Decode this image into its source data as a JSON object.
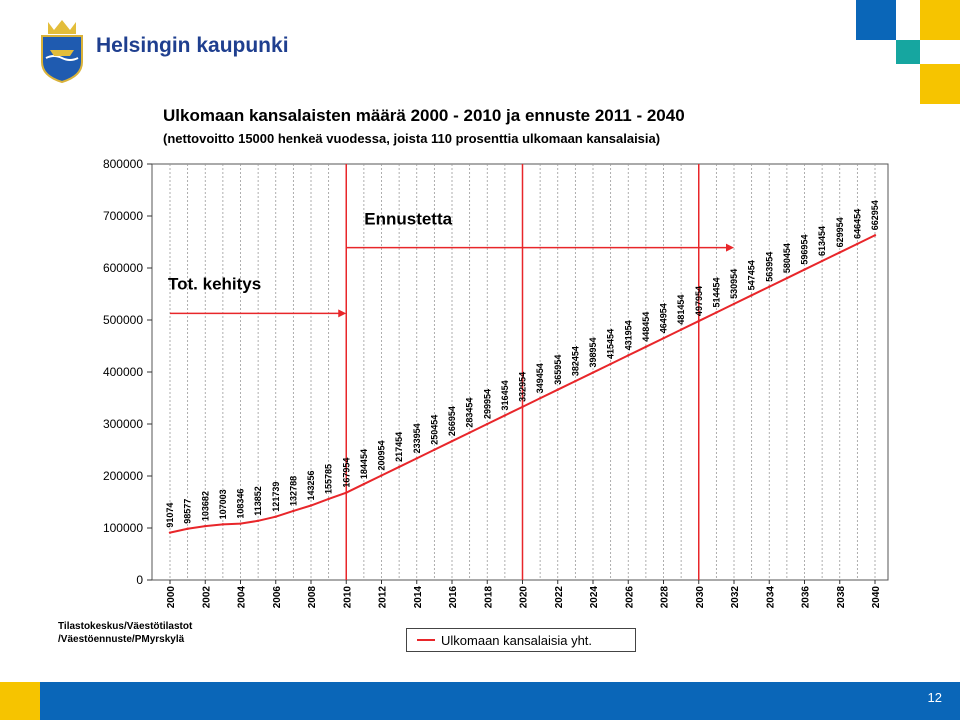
{
  "header": {
    "org_name": "Helsingin kaupunki"
  },
  "chart_data": {
    "type": "line",
    "title": "Ulkomaan kansalaisten määrä 2000 - 2010 ja ennuste 2011 - 2040",
    "subtitle": "(nettovoitto 15000 henkeä vuodessa, joista 110 prosenttia ulkomaan kansalaisia)",
    "xlabel": "",
    "ylabel": "",
    "ylim": [
      0,
      800000
    ],
    "xlim": [
      2000,
      2040
    ],
    "y_ticks": [
      "0",
      "100000",
      "200000",
      "300000",
      "400000",
      "500000",
      "600000",
      "700000",
      "800000"
    ],
    "x_ticks": [
      "2000",
      "2002",
      "2004",
      "2006",
      "2008",
      "2010",
      "2012",
      "2014",
      "2016",
      "2018",
      "2020",
      "2022",
      "2024",
      "2026",
      "2028",
      "2030",
      "2032",
      "2034",
      "2036",
      "2038",
      "2040"
    ],
    "grid": "vertical dashed",
    "series": [
      {
        "name": "Ulkomaan kansalaisia yht.",
        "color": "#e8262a",
        "x": [
          2000,
          2001,
          2002,
          2003,
          2004,
          2005,
          2006,
          2007,
          2008,
          2009,
          2010,
          2011,
          2012,
          2013,
          2014,
          2015,
          2016,
          2017,
          2018,
          2019,
          2020,
          2021,
          2022,
          2023,
          2024,
          2025,
          2026,
          2027,
          2028,
          2029,
          2030,
          2031,
          2032,
          2033,
          2034,
          2035,
          2036,
          2037,
          2038,
          2039,
          2040
        ],
        "values": [
          91074,
          98577,
          103682,
          107003,
          108346,
          113852,
          121739,
          132788,
          143256,
          155785,
          167954,
          184454,
          200954,
          217454,
          233954,
          250454,
          266954,
          283454,
          299954,
          316454,
          332954,
          349454,
          365954,
          382454,
          398954,
          415454,
          431954,
          448454,
          464954,
          481454,
          497954,
          514454,
          530954,
          547454,
          563954,
          580454,
          596954,
          613454,
          629954,
          646454,
          662954
        ]
      }
    ],
    "data_labels": [
      "91074",
      "98577",
      "103682",
      "107003",
      "108346",
      "113852",
      "121739",
      "132788",
      "143256",
      "155785",
      "167954",
      "184454",
      "200954",
      "217454",
      "233954",
      "250454",
      "266954",
      "283454",
      "299954",
      "316454",
      "332954",
      "349454",
      "365954",
      "382454",
      "398954",
      "415454",
      "431954",
      "448454",
      "464954",
      "481454",
      "497954",
      "514454",
      "530954",
      "547454",
      "563954",
      "580454",
      "596954",
      "613454",
      "629954",
      "646454",
      "662954"
    ],
    "vertical_markers": [
      2010,
      2020,
      2030
    ],
    "annotations": [
      {
        "text": "Tot. kehitys",
        "arrow_from": 2000,
        "arrow_to": 2010,
        "y": 555000
      },
      {
        "text": "Ennustetta",
        "arrow_from": 2010,
        "arrow_to": 2032,
        "y": 645000
      }
    ],
    "legend": "bottom-center"
  },
  "source": {
    "line1": "Tilastokeskus/Väestötilastot",
    "line2": "/Väestöennuste/PMyrskylä"
  },
  "legend": {
    "label": "Ulkomaan kansalaisia yht."
  },
  "footer": {
    "page_number": "12"
  },
  "colors": {
    "brand_blue": "#0a66b8",
    "brand_yellow": "#f6c400",
    "brand_teal": "#16a6a0",
    "series_red": "#e8262a"
  }
}
